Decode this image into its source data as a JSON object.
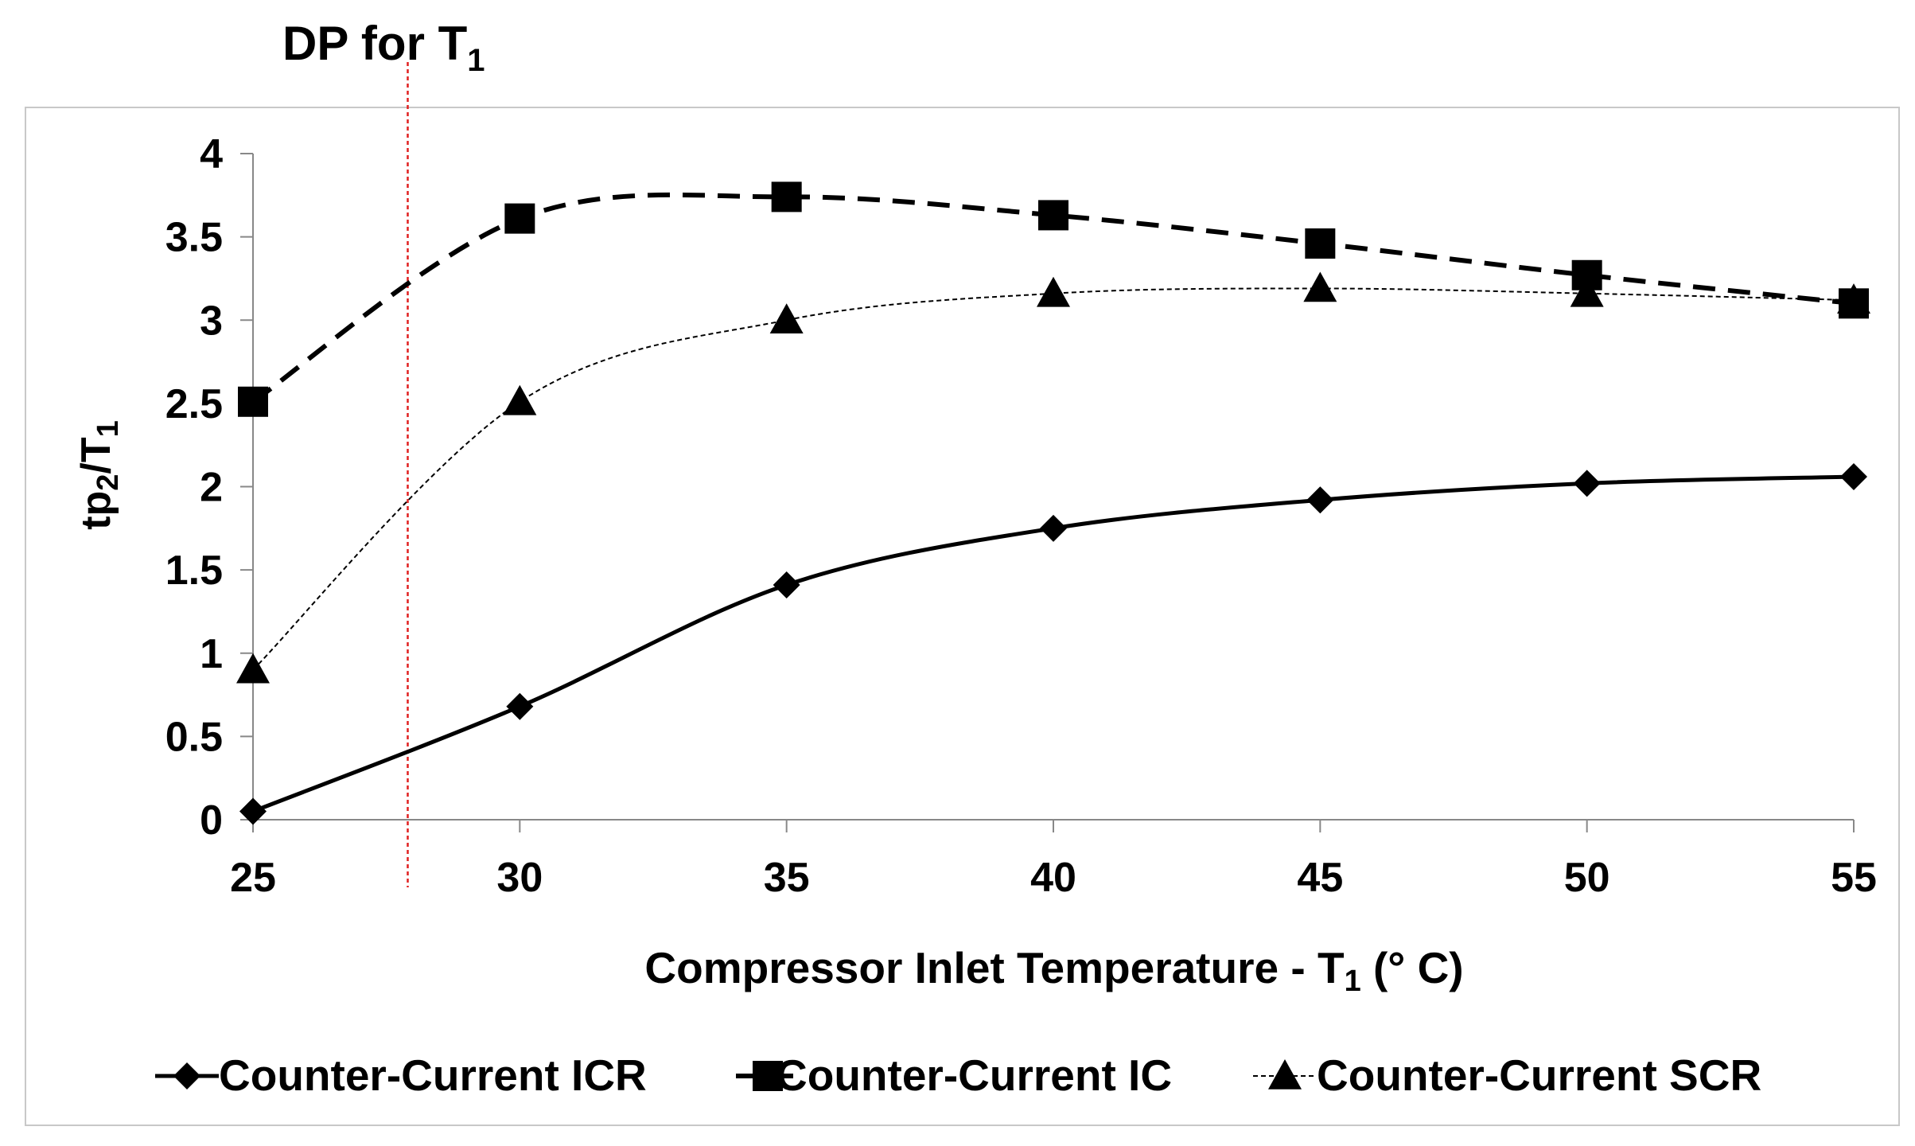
{
  "chart_data": {
    "type": "line",
    "annotation": {
      "label": "DP for T",
      "label_subscript": "1",
      "x": 27.9,
      "line_color": "#e02020"
    },
    "xlabel_parts": [
      "Compressor Inlet Temperature - T",
      "1",
      " (° C)"
    ],
    "ylabel_parts": [
      "tp",
      "2",
      "/T",
      "1"
    ],
    "x": [
      25,
      30,
      35,
      40,
      45,
      50,
      55
    ],
    "xlim": [
      25,
      55
    ],
    "ylim": [
      0,
      4
    ],
    "x_ticks": [
      "25",
      "30",
      "35",
      "40",
      "45",
      "50",
      "55"
    ],
    "y_ticks": [
      "0",
      "0.5",
      "1",
      "1.5",
      "2",
      "2.5",
      "3",
      "3.5",
      "4"
    ],
    "series": [
      {
        "name": "Counter-Current ICR",
        "marker": "diamond",
        "line": "solid",
        "values": [
          0.05,
          0.68,
          1.41,
          1.75,
          1.92,
          2.02,
          2.06
        ]
      },
      {
        "name": "Counter-Current IC",
        "marker": "square",
        "line": "dashed",
        "values": [
          2.51,
          3.61,
          3.74,
          3.63,
          3.46,
          3.27,
          3.1
        ]
      },
      {
        "name": "Counter-Current SCR",
        "marker": "triangle",
        "line": "dotted",
        "values": [
          0.9,
          2.51,
          3.0,
          3.16,
          3.19,
          3.16,
          3.12
        ]
      }
    ],
    "legend_position": "bottom"
  }
}
